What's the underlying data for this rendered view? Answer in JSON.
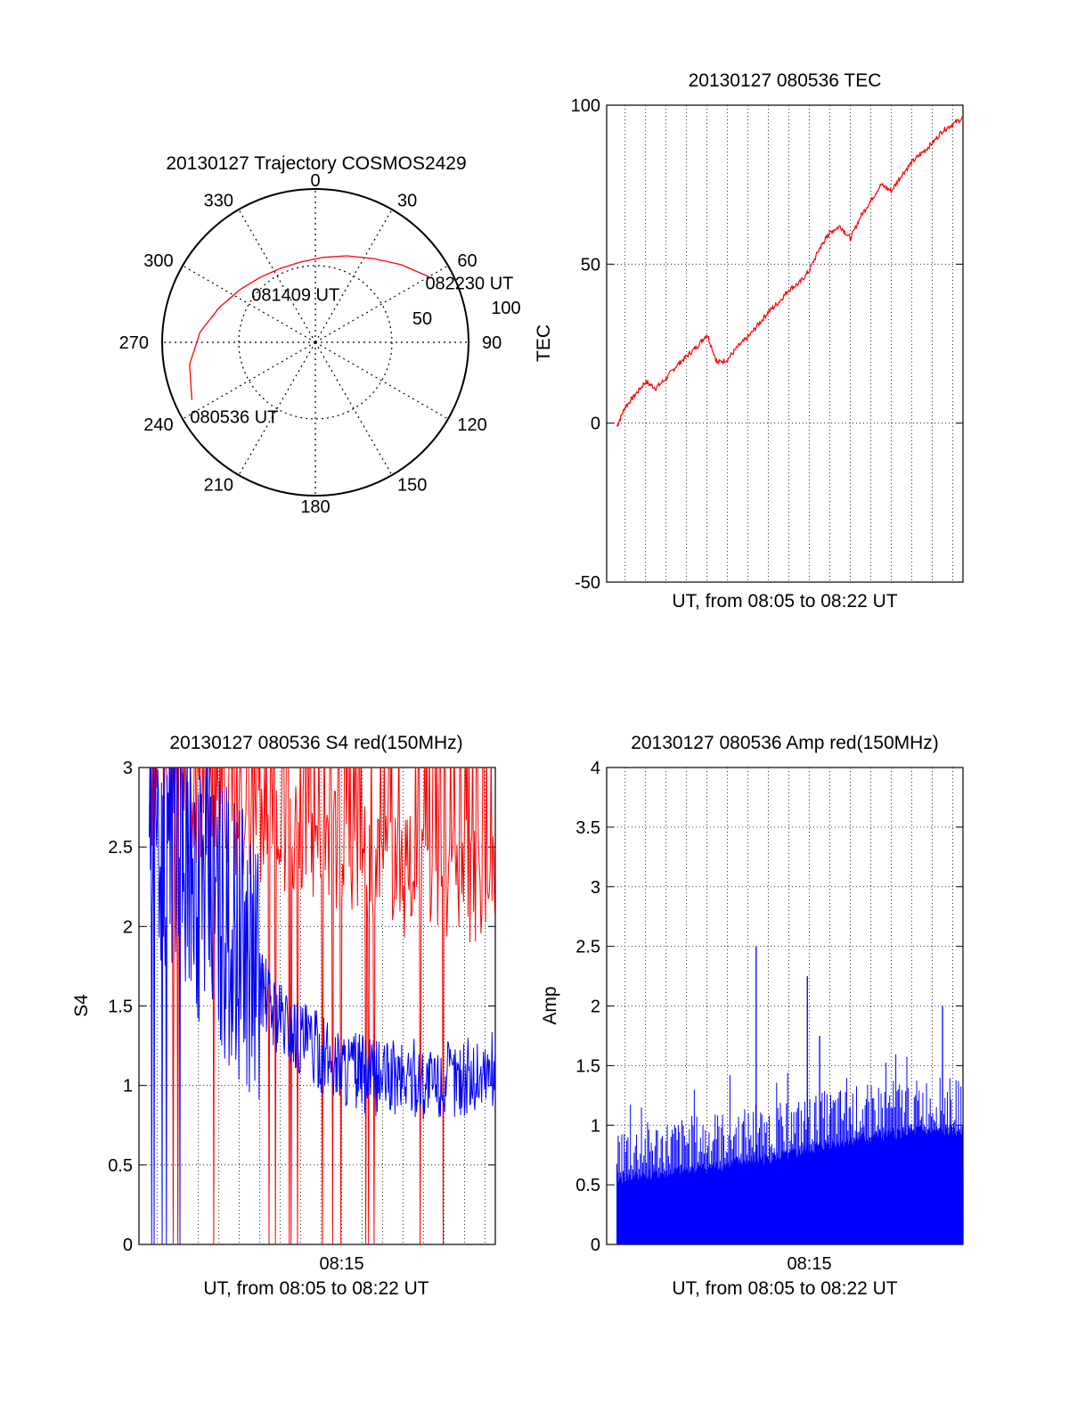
{
  "chart_data": [
    {
      "type": "polar",
      "title": "20130127 Trajectory COSMOS2429",
      "angle_ticks": [
        "0",
        "30",
        "60",
        "90",
        "120",
        "150",
        "180",
        "210",
        "240",
        "270",
        "300",
        "330"
      ],
      "radius_tick_labels": [
        "50",
        "100"
      ],
      "series_color": "#ff0000",
      "trajectory": [
        {
          "az": 245,
          "el": 10
        },
        {
          "az": 260,
          "el": 15
        },
        {
          "az": 275,
          "el": 22
        },
        {
          "az": 290,
          "el": 30
        },
        {
          "az": 305,
          "el": 36
        },
        {
          "az": 320,
          "el": 40
        },
        {
          "az": 335,
          "el": 42
        },
        {
          "az": 350,
          "el": 42
        },
        {
          "az": 5,
          "el": 40
        },
        {
          "az": 20,
          "el": 36
        },
        {
          "az": 35,
          "el": 30
        },
        {
          "az": 48,
          "el": 22
        },
        {
          "az": 60,
          "el": 13
        }
      ],
      "annotations": [
        {
          "text": "080536 UT",
          "az": 245,
          "el": 10
        },
        {
          "text": "081409 UT",
          "az": 345,
          "el": 42
        },
        {
          "text": "082230 UT",
          "az": 60,
          "el": 13
        }
      ]
    },
    {
      "type": "line",
      "title": "20130127 080536 TEC",
      "xlabel": "UT, from 08:05 to 08:22 UT",
      "ylabel": "TEC",
      "ylim": [
        -50,
        100
      ],
      "yticks": [
        "-50",
        "0",
        "50",
        "100"
      ],
      "xlim_minutes": [
        5.1,
        22.5
      ],
      "grid": true,
      "series_color": "#ff0000",
      "x_minutes": [
        5.6,
        6.0,
        6.5,
        7.0,
        7.5,
        8.0,
        8.5,
        9.0,
        9.5,
        10.0,
        10.5,
        11.0,
        11.5,
        12.0,
        12.5,
        13.0,
        13.5,
        14.0,
        14.5,
        15.0,
        15.5,
        15.8,
        16.0,
        16.5,
        17.0,
        17.5,
        18.0,
        18.5,
        19.0,
        19.5,
        20.0,
        20.5,
        21.0,
        21.5,
        22.0,
        22.5
      ],
      "values": [
        -1,
        5,
        9,
        13,
        11,
        14,
        18,
        21,
        24,
        28,
        19,
        20,
        24,
        27,
        31,
        35,
        38,
        42,
        44,
        48,
        55,
        58,
        60,
        62,
        58,
        65,
        70,
        75,
        73,
        78,
        82,
        85,
        88,
        92,
        94,
        96
      ]
    },
    {
      "type": "line",
      "title": "20130127 080536 S4 red(150MHz)",
      "xlabel": "UT, from 08:05 to 08:22 UT",
      "ylabel": "S4",
      "ylim": [
        0,
        3
      ],
      "yticks": [
        "0",
        "0.5",
        "1",
        "1.5",
        "2",
        "2.5",
        "3"
      ],
      "xtick_label": "08:15",
      "xtick_minute": 15,
      "xlim_minutes": [
        5.1,
        22.5
      ],
      "grid": true,
      "series": [
        {
          "color": "#ff0000",
          "envelope": [
            [
              5.6,
              2.7
            ],
            [
              8.0,
              2.8
            ],
            [
              10.0,
              2.7
            ],
            [
              12.0,
              2.6
            ],
            [
              14.0,
              2.5
            ],
            [
              16.0,
              2.4
            ],
            [
              18.0,
              2.3
            ],
            [
              20.0,
              2.3
            ],
            [
              22.5,
              2.3
            ]
          ]
        },
        {
          "color": "#0000ff",
          "x_minutes": [
            5.6,
            6.5,
            7.5,
            8.5,
            9.5,
            10.5,
            11.5,
            12.5,
            13.5,
            14.5,
            15.5,
            16.5,
            17.5,
            18.5,
            19.5,
            20.5,
            21.5,
            22.5
          ],
          "values": [
            2.8,
            2.6,
            2.4,
            2.2,
            2.0,
            1.8,
            1.5,
            1.35,
            1.25,
            1.15,
            1.1,
            1.05,
            1.05,
            1.05,
            1.0,
            1.05,
            1.05,
            1.1
          ]
        }
      ]
    },
    {
      "type": "bar",
      "title": "20130127 080536 Amp red(150MHz)",
      "xlabel": "UT, from 08:05 to 08:22 UT",
      "ylabel": "Amp",
      "ylim": [
        0,
        4
      ],
      "yticks": [
        "0",
        "0.5",
        "1",
        "1.5",
        "2",
        "2.5",
        "3",
        "3.5",
        "4"
      ],
      "xtick_label": "08:15",
      "xtick_minute": 15,
      "xlim_minutes": [
        5.1,
        22.5
      ],
      "grid": true,
      "series_color": "#0000ff",
      "baseline": [
        [
          5.6,
          0.55
        ],
        [
          8.0,
          0.6
        ],
        [
          10.0,
          0.65
        ],
        [
          12.0,
          0.7
        ],
        [
          14.0,
          0.75
        ],
        [
          16.0,
          0.85
        ],
        [
          18.0,
          0.9
        ],
        [
          20.0,
          0.95
        ],
        [
          22.5,
          0.95
        ]
      ],
      "spikes": [
        {
          "x_minutes": 12.4,
          "value": 2.5
        },
        {
          "x_minutes": 14.9,
          "value": 2.25
        },
        {
          "x_minutes": 15.5,
          "value": 1.75
        },
        {
          "x_minutes": 21.5,
          "value": 2.0
        }
      ]
    }
  ]
}
